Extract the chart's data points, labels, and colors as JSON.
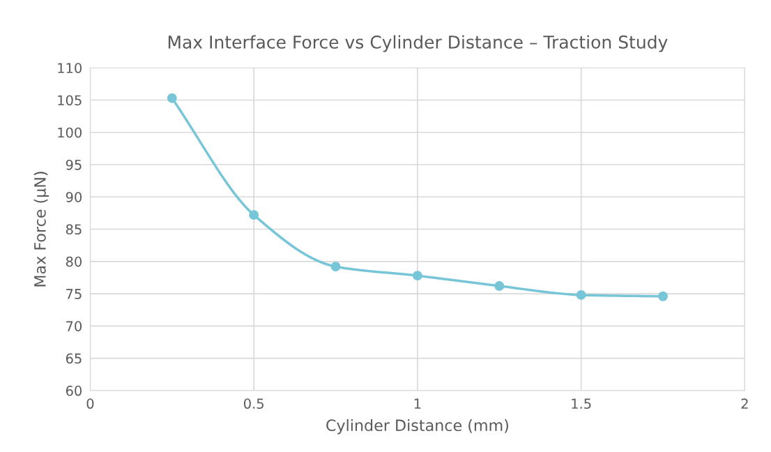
{
  "chart_data": {
    "type": "line",
    "title": "Max Interface Force vs Cylinder Distance – Traction Study",
    "xlabel": "Cylinder Distance (mm)",
    "ylabel": "Max Force (µN)",
    "x": [
      0.25,
      0.5,
      0.75,
      1.0,
      1.25,
      1.5,
      1.75
    ],
    "series": [
      {
        "color": "#77c6d8",
        "values": [
          105.3,
          87.2,
          79.2,
          77.8,
          76.2,
          74.8,
          74.6
        ]
      }
    ],
    "xlim": [
      0,
      2
    ],
    "xticks": [
      0,
      0.5,
      1,
      1.5,
      2
    ],
    "ylim": [
      60,
      110
    ],
    "yticks": [
      60,
      65,
      70,
      75,
      80,
      85,
      90,
      95,
      100,
      105,
      110
    ],
    "grid": true,
    "marker": "circle",
    "line_style": "solid"
  }
}
